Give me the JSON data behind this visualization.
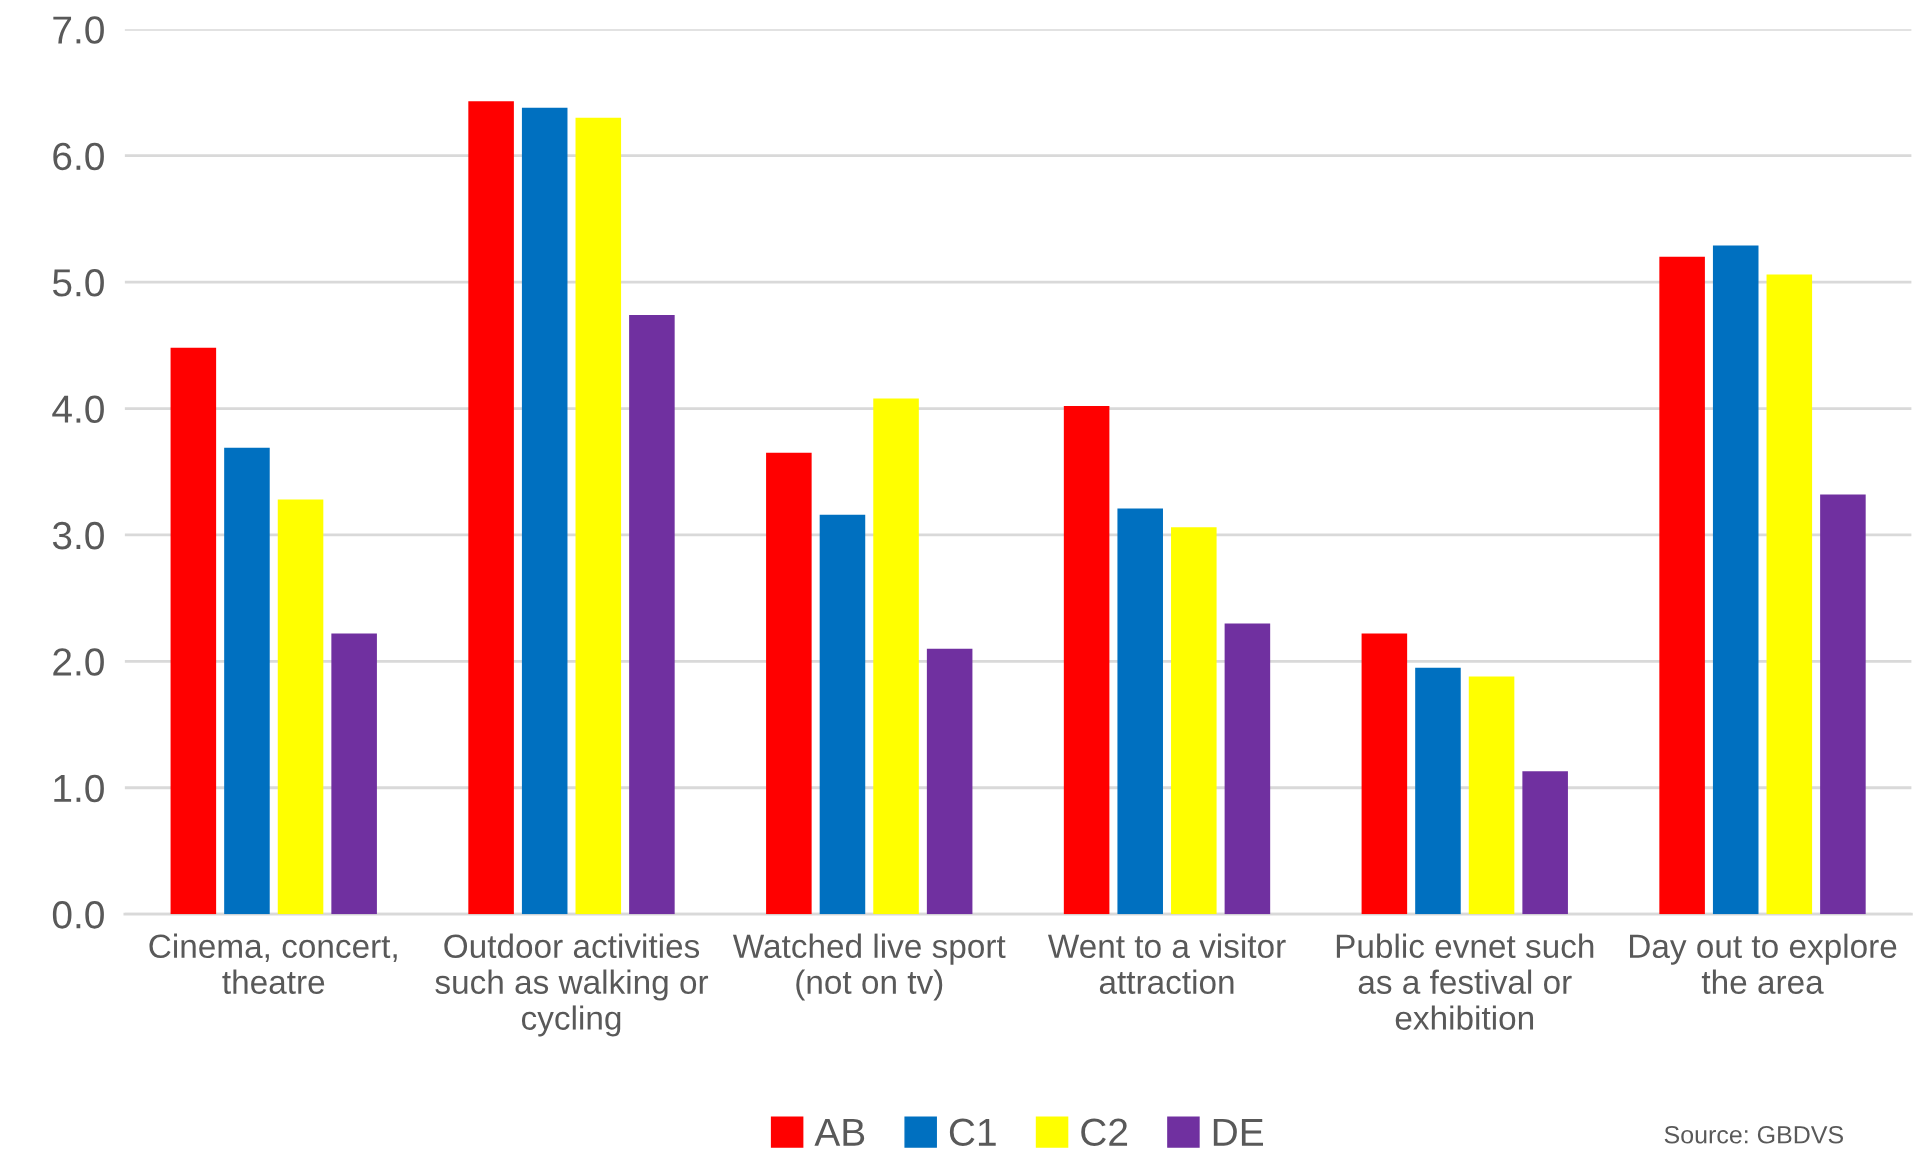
{
  "chart_data": {
    "type": "bar",
    "categories": [
      "Cinema, concert,\ntheatre",
      "Outdoor activities\nsuch as walking or\ncycling",
      "Watched live sport\n(not on tv)",
      "Went to a visitor\nattraction",
      "Public evnet such\nas a festival or\nexhibition",
      "Day out to explore\nthe area"
    ],
    "series": [
      {
        "name": "AB",
        "color": "#ff0000",
        "values": [
          4.48,
          6.43,
          3.65,
          4.02,
          2.22,
          5.2
        ]
      },
      {
        "name": "C1",
        "color": "#0070c0",
        "values": [
          3.69,
          6.38,
          3.16,
          3.21,
          1.95,
          5.29
        ]
      },
      {
        "name": "C2",
        "color": "#ffff00",
        "values": [
          3.28,
          6.3,
          4.08,
          3.06,
          1.88,
          5.06
        ]
      },
      {
        "name": "DE",
        "color": "#7030a0",
        "values": [
          2.22,
          4.74,
          2.1,
          2.3,
          1.13,
          3.32
        ]
      }
    ],
    "ylim": [
      0,
      7
    ],
    "yticks": [
      {
        "value": 0,
        "label": "0.0"
      },
      {
        "value": 1,
        "label": "1.0"
      },
      {
        "value": 2,
        "label": "2.0"
      },
      {
        "value": 3,
        "label": "3.0"
      },
      {
        "value": 4,
        "label": "4.0"
      },
      {
        "value": 5,
        "label": "5.0"
      },
      {
        "value": 6,
        "label": "6.0"
      },
      {
        "value": 7,
        "label": "7.0"
      }
    ],
    "grid": "y",
    "legend": "bottom",
    "annotations": [
      "Source: GBDVS"
    ]
  }
}
